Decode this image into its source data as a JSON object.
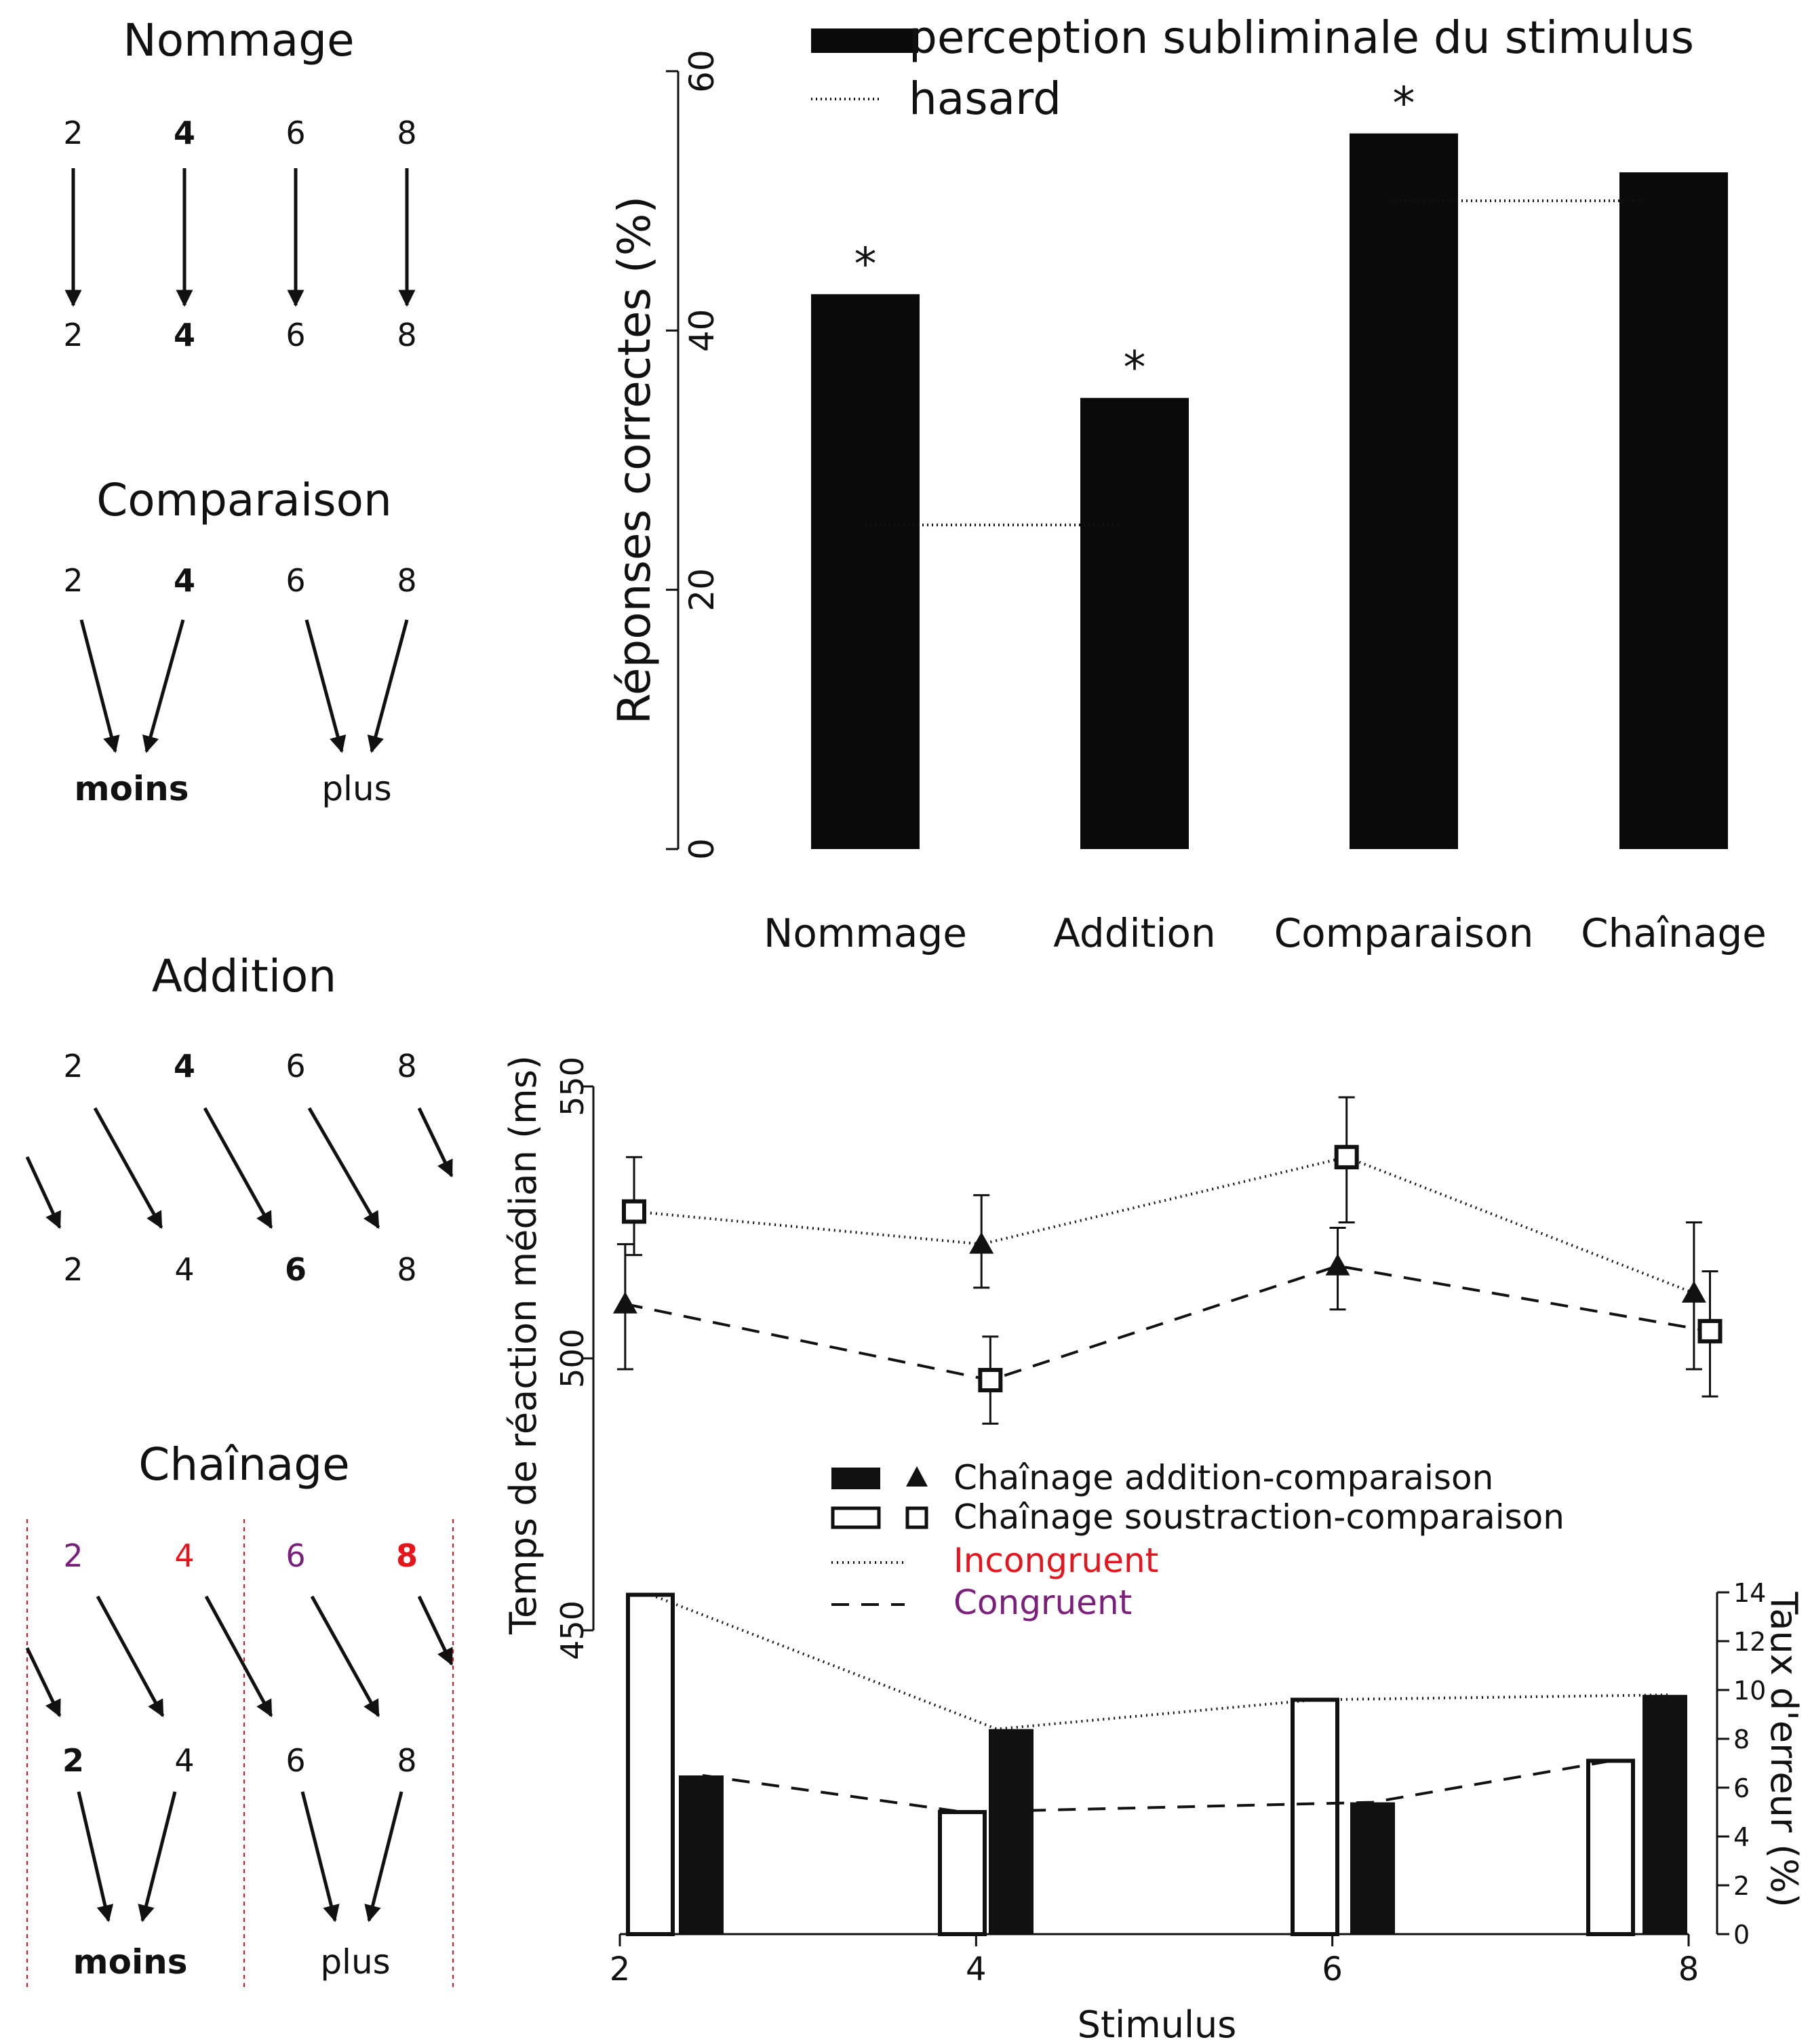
{
  "diagrams": [
    {
      "title": "Nommage",
      "top": [
        {
          "t": "2",
          "b": false
        },
        {
          "t": "4",
          "b": true
        },
        {
          "t": "6",
          "b": false
        },
        {
          "t": "8",
          "b": false
        }
      ],
      "bottom": [
        {
          "t": "2",
          "b": false
        },
        {
          "t": "4",
          "b": true
        },
        {
          "t": "6",
          "b": false
        },
        {
          "t": "8",
          "b": false
        }
      ]
    },
    {
      "title": "Comparaison",
      "top": [
        {
          "t": "2",
          "b": false
        },
        {
          "t": "4",
          "b": true
        },
        {
          "t": "6",
          "b": false
        },
        {
          "t": "8",
          "b": false
        }
      ],
      "bottom": [
        {
          "t": "moins",
          "b": true
        },
        {
          "t": "plus",
          "b": false
        }
      ]
    },
    {
      "title": "Addition",
      "top": [
        {
          "t": "2",
          "b": false
        },
        {
          "t": "4",
          "b": true
        },
        {
          "t": "6",
          "b": false
        },
        {
          "t": "8",
          "b": false
        }
      ],
      "bottom": [
        {
          "t": "2",
          "b": false
        },
        {
          "t": "4",
          "b": false
        },
        {
          "t": "6",
          "b": true
        },
        {
          "t": "8",
          "b": false
        }
      ]
    },
    {
      "title": "Chaînage",
      "top": [
        {
          "t": "2",
          "b": false,
          "c": "#7a1f7a"
        },
        {
          "t": "4",
          "b": false,
          "c": "#e8141b"
        },
        {
          "t": "6",
          "b": false,
          "c": "#7a1f7a"
        },
        {
          "t": "8",
          "b": true,
          "c": "#e8141b"
        }
      ],
      "middle": [
        {
          "t": "2",
          "b": true
        },
        {
          "t": "4",
          "b": false
        },
        {
          "t": "6",
          "b": false
        },
        {
          "t": "8",
          "b": false
        }
      ],
      "bottom": [
        {
          "t": "moins",
          "b": true
        },
        {
          "t": "plus",
          "b": false
        }
      ]
    }
  ],
  "chart_data": [
    {
      "type": "bar",
      "ylabel": "Réponses correctes (%)",
      "ylim": [
        0,
        60
      ],
      "yticks": [
        "0",
        "20",
        "40",
        "60"
      ],
      "categories": [
        "Nommage",
        "Addition",
        "Comparaison",
        "Chaînage"
      ],
      "series": [
        {
          "name": "perception subliminale du stimulus",
          "values": [
            42.8,
            34.8,
            55.2,
            52.2
          ]
        }
      ],
      "chance": {
        "name": "hasard",
        "values": [
          25,
          25,
          50,
          50
        ]
      },
      "significant": [
        "*",
        "*",
        "*",
        ""
      ],
      "legend": "top-right",
      "colors": {
        "bar": "#0a0a0a"
      }
    },
    {
      "type": "line",
      "xlabel": "Stimulus",
      "ylabel": "Temps de réaction médian (ms)",
      "ylim": [
        450,
        550
      ],
      "yticks": [
        "450",
        "500",
        "550"
      ],
      "x": [
        2,
        4,
        6,
        8
      ],
      "xticks": [
        "2",
        "4",
        "6",
        "8"
      ],
      "series": [
        {
          "marker": "triangle",
          "values": [
            510,
            521,
            517,
            512
          ],
          "err_low": [
            498,
            513,
            509,
            498
          ],
          "err_high": [
            521,
            530,
            524,
            525
          ],
          "x": [
            2.03,
            4.03,
            6.03,
            8.03
          ]
        },
        {
          "marker": "square",
          "values": [
            527,
            496,
            537,
            505
          ],
          "err_low": [
            519,
            488,
            525,
            493
          ],
          "err_high": [
            537,
            504,
            548,
            516
          ],
          "x": [
            2.08,
            4.08,
            6.08,
            8.12
          ]
        }
      ],
      "line_styles": [
        {
          "style": "dotted",
          "values": [
            527,
            521,
            537,
            512
          ]
        },
        {
          "style": "dashed",
          "values": [
            510,
            496,
            517,
            505
          ]
        }
      ]
    },
    {
      "type": "bar",
      "ylabel": "Taux d'erreur (%)",
      "ylim": [
        0,
        14
      ],
      "yticks": [
        "0",
        "2",
        "4",
        "6",
        "8",
        "10",
        "12",
        "14"
      ],
      "x": [
        2,
        4,
        6,
        8
      ],
      "series": [
        {
          "fill": "white",
          "values": [
            13.9,
            5.0,
            9.6,
            7.1
          ]
        },
        {
          "fill": "black",
          "values": [
            6.5,
            8.4,
            5.4,
            9.8
          ]
        }
      ],
      "line_styles": [
        {
          "style": "dotted",
          "values": [
            13.9,
            8.4,
            9.6,
            9.8
          ]
        },
        {
          "style": "dashed",
          "values": [
            6.5,
            5.0,
            5.4,
            7.1
          ]
        }
      ]
    }
  ],
  "legend2": [
    {
      "label": "Chaînage addition-comparaison",
      "kind": "black",
      "color": "#111111"
    },
    {
      "label": "Chaînage soustraction-comparaison",
      "kind": "white",
      "color": "#111111"
    },
    {
      "label": "Incongruent",
      "kind": "dotted",
      "color": "#e8141b"
    },
    {
      "label": "Congruent",
      "kind": "dashed",
      "color": "#7a1f7a"
    }
  ]
}
